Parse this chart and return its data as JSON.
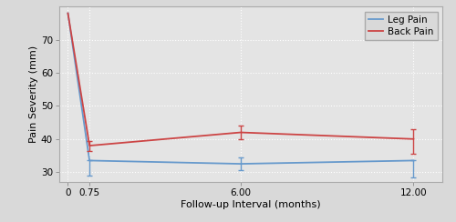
{
  "x": [
    0,
    0.75,
    6.0,
    12.0
  ],
  "leg_pain_mean": [
    78,
    33.5,
    32.5,
    33.5
  ],
  "leg_pain_ci_lo": [
    0,
    4.5,
    2.0,
    5.0
  ],
  "leg_pain_ci_hi": [
    0,
    0,
    2.0,
    0
  ],
  "back_pain_mean": [
    78,
    38,
    42,
    40
  ],
  "back_pain_ci_lo": [
    0,
    1.5,
    2.0,
    4.5
  ],
  "back_pain_ci_hi": [
    0,
    1.5,
    2.0,
    3.0
  ],
  "leg_color": "#6699cc",
  "back_color": "#cc4444",
  "ylabel": "Pain Severity (mm)",
  "xlabel": "Follow-up Interval (months)",
  "ylim": [
    27,
    80
  ],
  "yticks": [
    30,
    40,
    50,
    60,
    70
  ],
  "xticks": [
    0,
    0.75,
    6.0,
    12.0
  ],
  "xticklabels": [
    "0",
    "0.75",
    "6.00",
    "12.00"
  ],
  "xlim": [
    -0.3,
    13.0
  ],
  "legend_leg": "Leg Pain",
  "legend_back": "Back Pain",
  "bg_color": "#d9d9d9",
  "plot_bg_color": "#e4e4e4",
  "grid_color": "#ffffff",
  "legend_fontsize": 7.5,
  "axis_fontsize": 8,
  "tick_fontsize": 7.5
}
